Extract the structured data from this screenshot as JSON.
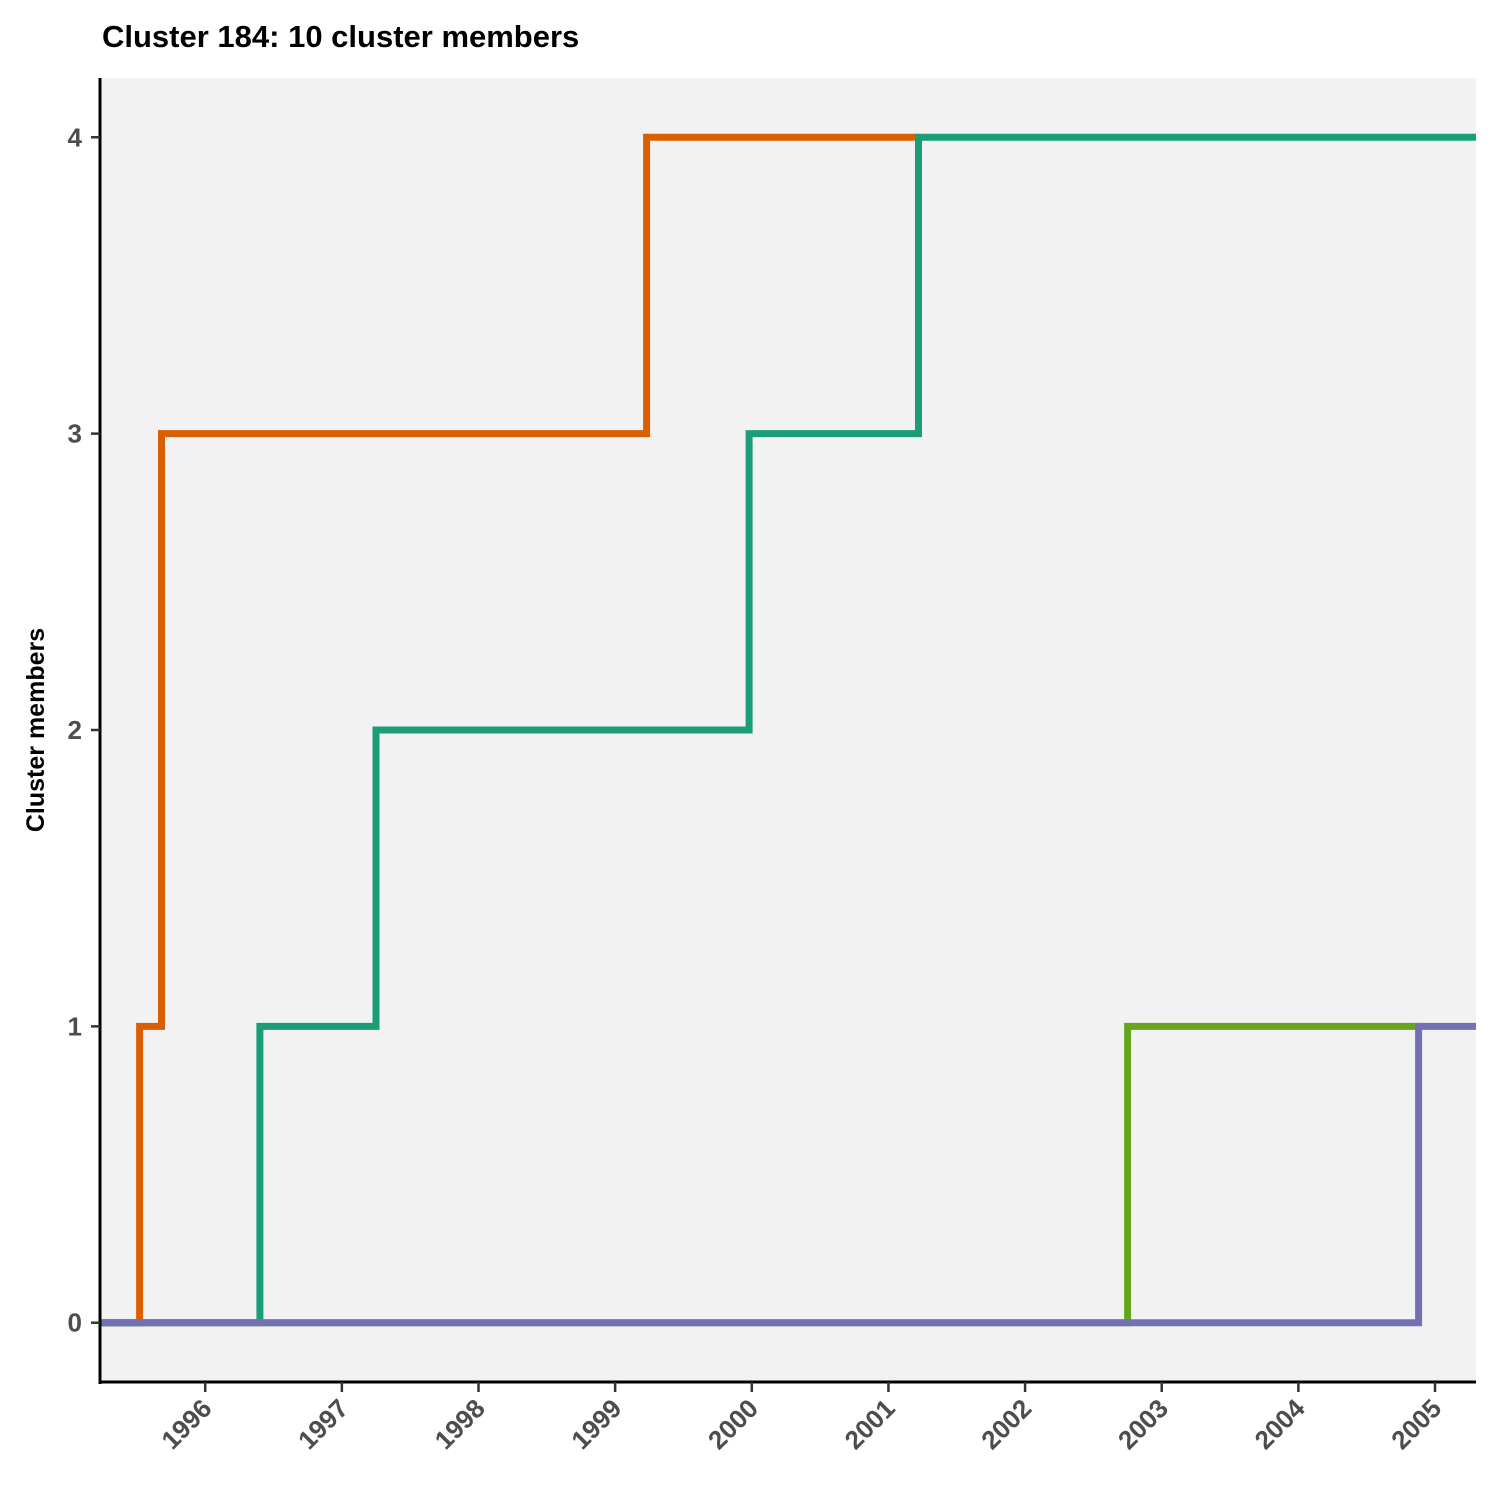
{
  "chart_data": {
    "type": "line",
    "step": "hv",
    "title": "Cluster 184: 10 cluster members",
    "xlabel": "",
    "ylabel": "Cluster members",
    "xlim": [
      1995.23,
      2005.3
    ],
    "ylim": [
      -0.2,
      4.2
    ],
    "xticks": [
      "1996",
      "1997",
      "1998",
      "1999",
      "2000",
      "2001",
      "2002",
      "2003",
      "2004",
      "2005"
    ],
    "yticks": [
      "0",
      "1",
      "2",
      "3",
      "4"
    ],
    "grid": false,
    "legend": "none",
    "background": "#f2f2f2",
    "series": [
      {
        "color": "#d95f02",
        "x": [
          1995.23,
          1995.52,
          1995.68,
          1999.23,
          2001.2
        ],
        "y": [
          0,
          1,
          3,
          4,
          4
        ]
      },
      {
        "color": "#1b9e77",
        "x": [
          1995.23,
          1996.4,
          1997.25,
          1999.98,
          2001.22,
          2005.3
        ],
        "y": [
          0,
          1,
          2,
          3,
          4,
          4
        ]
      },
      {
        "color": "#66a61e",
        "x": [
          1995.23,
          2002.75,
          2004.88
        ],
        "y": [
          0,
          1,
          1
        ]
      },
      {
        "color": "#7570b3",
        "x": [
          1995.23,
          2004.88,
          2005.3
        ],
        "y": [
          0,
          1,
          1
        ]
      }
    ]
  }
}
